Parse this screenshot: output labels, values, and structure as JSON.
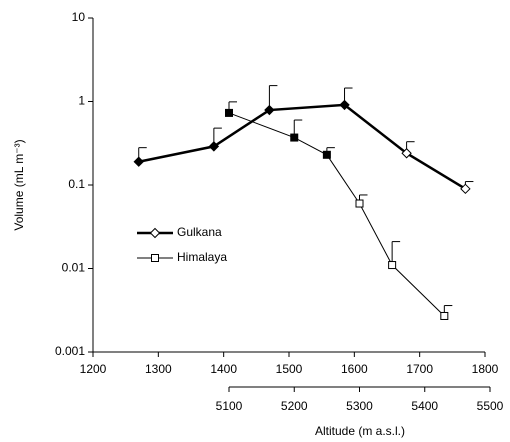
{
  "chart_data": {
    "type": "line",
    "ylabel": "Volume (mL m⁻³)",
    "xlabel": "Altitude (m a.s.l.)",
    "xlim": [
      1200,
      1800
    ],
    "xticks": [
      1200,
      1300,
      1400,
      1500,
      1600,
      1700,
      1800
    ],
    "x2lim": [
      5100,
      5500
    ],
    "x2ticks": [
      5100,
      5200,
      5300,
      5400,
      5500
    ],
    "ylim": [
      0.001,
      10
    ],
    "yticks": [
      0.001,
      0.01,
      0.1,
      1,
      10
    ],
    "ylog": true,
    "legend": "left",
    "series": [
      {
        "name": "Gulkana",
        "color": "#000000",
        "marker": "diamond",
        "line_width": 2.5,
        "axis": "x",
        "x": [
          1270,
          1385,
          1470,
          1585,
          1680,
          1770
        ],
        "values": [
          0.19,
          0.29,
          0.79,
          0.91,
          0.24,
          0.09
        ],
        "errors": [
          0.09,
          0.19,
          0.76,
          0.54,
          0.09,
          0.02
        ],
        "marker_filled": [
          true,
          true,
          true,
          true,
          false,
          false
        ]
      },
      {
        "name": "Himalaya",
        "color": "#000000",
        "marker": "square",
        "line_width": 1,
        "axis": "x2",
        "x": [
          5100,
          5200,
          5250,
          5300,
          5350,
          5430
        ],
        "values": [
          0.73,
          0.37,
          0.23,
          0.06,
          0.011,
          0.0027
        ],
        "errors": [
          0.26,
          0.23,
          0.05,
          0.016,
          0.01,
          0.0009
        ],
        "marker_filled": [
          true,
          true,
          true,
          false,
          false,
          false
        ]
      }
    ]
  }
}
